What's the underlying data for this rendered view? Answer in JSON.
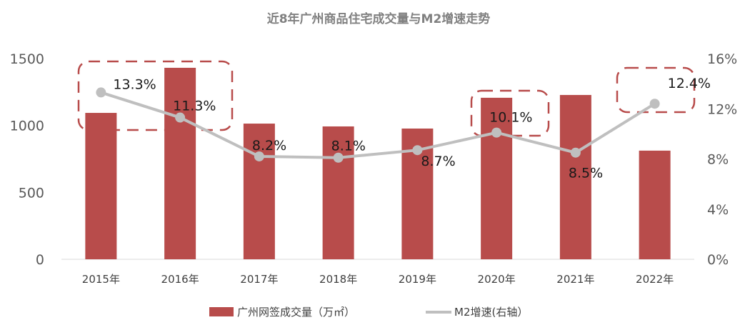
{
  "chart_data": {
    "type": "bar+line",
    "title": "近8年广州商品住宅成交量与M2增速走势",
    "categories": [
      "2015年",
      "2016年",
      "2017年",
      "2018年",
      "2019年",
      "2020年",
      "2021年",
      "2022年"
    ],
    "series": [
      {
        "name": "广州网签成交量（万㎡）",
        "type": "bar",
        "axis": "left",
        "color": "#B84C4B",
        "values": [
          1094,
          1431,
          1014,
          993,
          977,
          1207,
          1228,
          812
        ]
      },
      {
        "name": "M2增速(右轴）",
        "type": "line",
        "axis": "right",
        "color": "#BFBFBF",
        "values": [
          13.3,
          11.3,
          8.2,
          8.1,
          8.7,
          10.1,
          8.5,
          12.4
        ],
        "labels": [
          "13.3%",
          "11.3%",
          "8.2%",
          "8.1%",
          "8.7%",
          "10.1%",
          "8.5%",
          "12.4%"
        ]
      }
    ],
    "left_axis": {
      "min": 0,
      "max": 1500,
      "ticks": [
        "0",
        "500",
        "1000",
        "1500"
      ]
    },
    "right_axis": {
      "min": 0,
      "max": 16,
      "ticks": [
        "0%",
        "4%",
        "8%",
        "12%",
        "16%"
      ]
    },
    "highlighted_categories": [
      "2015年",
      "2016年",
      "2020年",
      "2022年"
    ],
    "highlight_color": "#B84C4B",
    "grid": false,
    "legend_position": "bottom"
  }
}
